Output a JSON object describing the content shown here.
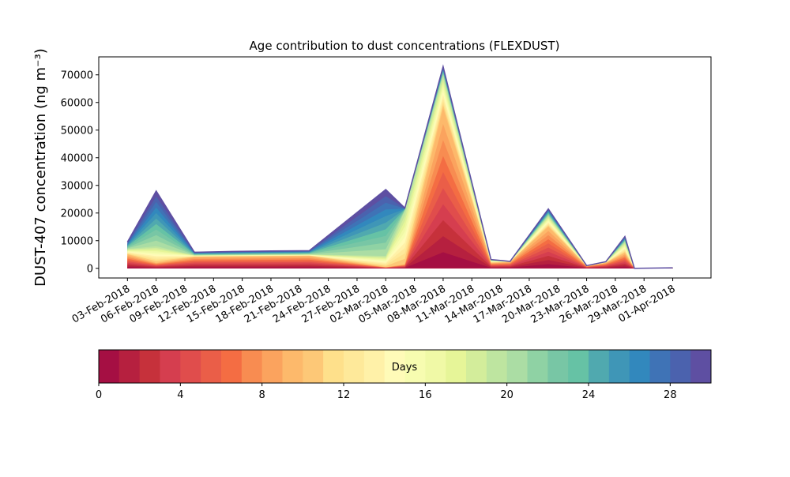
{
  "chart_data": {
    "type": "area",
    "title": "Age contribution to dust concentrations (FLEXDUST)",
    "ylabel": "DUST-407 concentration (ng m⁻³)",
    "xlabel": "",
    "ylim": [
      -3500,
      76500
    ],
    "yticks": [
      0,
      10000,
      20000,
      30000,
      40000,
      50000,
      60000,
      70000
    ],
    "ytick_labels": [
      "0",
      "10000",
      "20000",
      "30000",
      "40000",
      "50000",
      "60000",
      "70000"
    ],
    "xlim": [
      "2018-01-31",
      "2018-04-05"
    ],
    "xticks": [
      "2018-02-03",
      "2018-02-06",
      "2018-02-09",
      "2018-02-12",
      "2018-02-15",
      "2018-02-18",
      "2018-02-21",
      "2018-02-24",
      "2018-02-27",
      "2018-03-02",
      "2018-03-05",
      "2018-03-08",
      "2018-03-11",
      "2018-03-14",
      "2018-03-17",
      "2018-03-20",
      "2018-03-23",
      "2018-03-26",
      "2018-03-29",
      "2018-04-01"
    ],
    "xtick_labels": [
      "03-Feb-2018",
      "06-Feb-2018",
      "09-Feb-2018",
      "12-Feb-2018",
      "15-Feb-2018",
      "18-Feb-2018",
      "21-Feb-2018",
      "24-Feb-2018",
      "27-Feb-2018",
      "02-Mar-2018",
      "05-Mar-2018",
      "08-Mar-2018",
      "11-Mar-2018",
      "14-Mar-2018",
      "17-Mar-2018",
      "20-Mar-2018",
      "23-Mar-2018",
      "26-Mar-2018",
      "29-Mar-2018",
      "01-Apr-2018"
    ],
    "dates": [
      "2018-02-03",
      "2018-02-06",
      "2018-02-10",
      "2018-02-14",
      "2018-02-18",
      "2018-02-22",
      "2018-03-02",
      "2018-03-04",
      "2018-03-08",
      "2018-03-13",
      "2018-03-15",
      "2018-03-19",
      "2018-03-23",
      "2018-03-25",
      "2018-03-27",
      "2018-03-28",
      "2018-04-01"
    ],
    "total": [
      9500,
      28000,
      5800,
      6100,
      6300,
      6400,
      28500,
      21800,
      73000,
      3200,
      2500,
      21500,
      1000,
      2400,
      11500,
      0,
      200
    ],
    "age_profiles": [
      [
        5000,
        2000,
        4200,
        4300,
        4400,
        4500,
        400,
        1500,
        58000,
        2000,
        2300,
        15000,
        800,
        2000,
        5500,
        0,
        150
      ],
      [
        7000,
        8000,
        4700,
        4800,
        4900,
        5000,
        4500,
        21000,
        70000,
        2800,
        2400,
        19000,
        900,
        2200,
        9500,
        0,
        180
      ],
      [
        9500,
        28000,
        5800,
        6100,
        6300,
        6400,
        28500,
        21800,
        73000,
        3200,
        2500,
        21500,
        1000,
        2400,
        11500,
        0,
        200
      ]
    ],
    "grid": false,
    "colorbar": {
      "label": "Days",
      "min": 0,
      "max": 30,
      "levels": 30,
      "ticks": [
        0,
        4,
        8,
        12,
        16,
        20,
        24,
        28
      ],
      "tick_labels": [
        "0",
        "4",
        "8",
        "12",
        "16",
        "20",
        "24",
        "28"
      ],
      "colors": [
        "#a50f43",
        "#b6203f",
        "#c6313b",
        "#d53e4f",
        "#e04d4c",
        "#ea5e48",
        "#f46d43",
        "#f88c51",
        "#fba35e",
        "#fdb96b",
        "#fdc877",
        "#fee08b",
        "#fee99a",
        "#fff1a8",
        "#fffbb8",
        "#f7fcb0",
        "#f0f9a6",
        "#e6f598",
        "#d3ed9b",
        "#bee5a0",
        "#abdda4",
        "#8fd2a4",
        "#78c6a5",
        "#66c2a5",
        "#50a9af",
        "#3f96b7",
        "#3288bd",
        "#3f73b6",
        "#4b62ae",
        "#5e4fa2"
      ]
    }
  }
}
